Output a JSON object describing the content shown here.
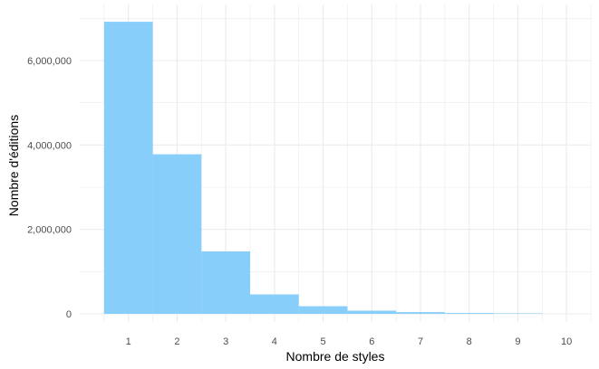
{
  "chart_data": {
    "type": "bar",
    "categories": [
      "1",
      "2",
      "3",
      "4",
      "5",
      "6",
      "7",
      "8",
      "9",
      "10"
    ],
    "values": [
      6920000,
      3780000,
      1480000,
      460000,
      180000,
      75000,
      40000,
      20000,
      12000,
      0
    ],
    "xlabel": "Nombre de styles",
    "ylabel": "Nombre d'éditions",
    "ylim": [
      -150000,
      7000000
    ],
    "xlim": [
      0,
      10.5
    ],
    "yticks": [
      0,
      2000000,
      4000000,
      6000000
    ],
    "ytick_labels": [
      "0",
      "2,000,000",
      "4,000,000",
      "6,000,000"
    ],
    "xticks": [
      1,
      2,
      3,
      4,
      5,
      6,
      7,
      8,
      9,
      10
    ],
    "xtick_labels": [
      "1",
      "2",
      "3",
      "4",
      "5",
      "6",
      "7",
      "8",
      "9",
      "10"
    ],
    "grid": true,
    "bar_color": "#87CEFA",
    "grid_color": "#ebebeb"
  }
}
